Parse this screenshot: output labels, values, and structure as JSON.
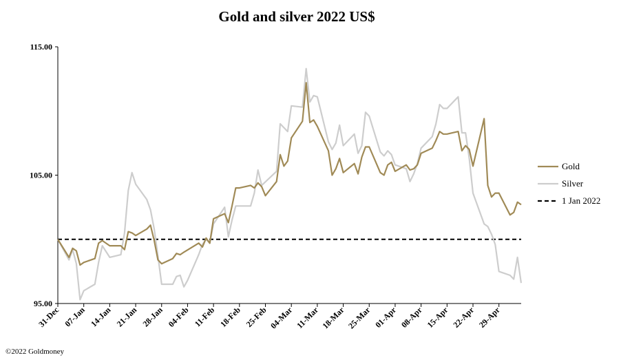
{
  "footer": {
    "copyright": "©2022 Goldmoney"
  },
  "chart_data": {
    "type": "line",
    "title": "Gold and silver 2022  US$",
    "xlabel": "",
    "ylabel": "",
    "ylim": [
      95,
      115
    ],
    "yticks": [
      "95.00",
      "105.00",
      "115.00"
    ],
    "grid": false,
    "legend_position": "right",
    "colors": {
      "gold": "#A08A56",
      "silver": "#CDCDCD",
      "baseline": "#000000"
    },
    "x_tick_labels": [
      "31-Dec",
      "07-Jan",
      "14-Jan",
      "21-Jan",
      "28-Jan",
      "04-Feb",
      "11-Feb",
      "18-Feb",
      "25-Feb",
      "04-Mar",
      "11-Mar",
      "18-Mar",
      "25-Mar",
      "01-Apr",
      "08-Apr",
      "15-Apr",
      "22-Apr",
      "29-Apr"
    ],
    "x_range_days": [
      0,
      125
    ],
    "baseline": {
      "name": "1 Jan 2022",
      "value": 100
    },
    "series": [
      {
        "name": "Gold",
        "points": [
          [
            0,
            100.0
          ],
          [
            3,
            98.6
          ],
          [
            4,
            99.3
          ],
          [
            5,
            99.1
          ],
          [
            6,
            98.0
          ],
          [
            7,
            98.2
          ],
          [
            10,
            98.5
          ],
          [
            11,
            99.7
          ],
          [
            12,
            99.9
          ],
          [
            14,
            99.5
          ],
          [
            17,
            99.5
          ],
          [
            18,
            99.2
          ],
          [
            19,
            100.6
          ],
          [
            20,
            100.5
          ],
          [
            21,
            100.3
          ],
          [
            24,
            100.8
          ],
          [
            25,
            101.1
          ],
          [
            26,
            99.9
          ],
          [
            27,
            98.4
          ],
          [
            28,
            98.1
          ],
          [
            31,
            98.5
          ],
          [
            32,
            98.9
          ],
          [
            33,
            98.8
          ],
          [
            34,
            99.0
          ],
          [
            38,
            99.7
          ],
          [
            39,
            99.4
          ],
          [
            40,
            100.1
          ],
          [
            41,
            99.7
          ],
          [
            42,
            101.6
          ],
          [
            45,
            102.0
          ],
          [
            46,
            101.3
          ],
          [
            47,
            102.6
          ],
          [
            48,
            104.0
          ],
          [
            49,
            104.0
          ],
          [
            52,
            104.2
          ],
          [
            53,
            104.0
          ],
          [
            54,
            104.4
          ],
          [
            55,
            104.1
          ],
          [
            56,
            103.4
          ],
          [
            59,
            104.5
          ],
          [
            60,
            106.6
          ],
          [
            61,
            105.7
          ],
          [
            62,
            106.1
          ],
          [
            63,
            107.9
          ],
          [
            66,
            109.2
          ],
          [
            67,
            112.2
          ],
          [
            68,
            109.1
          ],
          [
            69,
            109.3
          ],
          [
            70,
            108.8
          ],
          [
            73,
            106.9
          ],
          [
            74,
            105.0
          ],
          [
            75,
            105.5
          ],
          [
            76,
            106.3
          ],
          [
            77,
            105.2
          ],
          [
            80,
            105.9
          ],
          [
            81,
            105.1
          ],
          [
            82,
            106.4
          ],
          [
            83,
            107.2
          ],
          [
            84,
            107.2
          ],
          [
            87,
            105.2
          ],
          [
            88,
            105.0
          ],
          [
            89,
            105.8
          ],
          [
            90,
            106.0
          ],
          [
            91,
            105.3
          ],
          [
            94,
            105.8
          ],
          [
            95,
            105.4
          ],
          [
            96,
            105.5
          ],
          [
            97,
            105.8
          ],
          [
            98,
            106.7
          ],
          [
            101,
            107.1
          ],
          [
            102,
            107.7
          ],
          [
            103,
            108.4
          ],
          [
            104,
            108.2
          ],
          [
            105,
            108.2
          ],
          [
            108,
            108.4
          ],
          [
            109,
            106.9
          ],
          [
            110,
            107.3
          ],
          [
            111,
            107.0
          ],
          [
            112,
            105.7
          ],
          [
            115,
            109.4
          ],
          [
            116,
            104.2
          ],
          [
            117,
            103.3
          ],
          [
            118,
            103.6
          ],
          [
            119,
            103.6
          ],
          [
            122,
            101.9
          ],
          [
            123,
            102.1
          ],
          [
            124,
            102.9
          ],
          [
            125,
            102.7
          ]
        ]
      },
      {
        "name": "Silver",
        "points": [
          [
            0,
            100.0
          ],
          [
            3,
            98.4
          ],
          [
            4,
            99.2
          ],
          [
            5,
            98.1
          ],
          [
            6,
            95.3
          ],
          [
            7,
            96.0
          ],
          [
            10,
            96.5
          ],
          [
            11,
            98.2
          ],
          [
            12,
            99.5
          ],
          [
            14,
            98.6
          ],
          [
            17,
            98.8
          ],
          [
            18,
            100.5
          ],
          [
            19,
            103.8
          ],
          [
            20,
            105.2
          ],
          [
            21,
            104.3
          ],
          [
            24,
            103.1
          ],
          [
            25,
            102.3
          ],
          [
            26,
            100.8
          ],
          [
            27,
            98.7
          ],
          [
            28,
            96.5
          ],
          [
            31,
            96.5
          ],
          [
            32,
            97.1
          ],
          [
            33,
            97.2
          ],
          [
            34,
            96.3
          ],
          [
            35,
            96.8
          ],
          [
            38,
            98.8
          ],
          [
            39,
            99.6
          ],
          [
            40,
            100.0
          ],
          [
            41,
            99.7
          ],
          [
            42,
            101.2
          ],
          [
            45,
            102.5
          ],
          [
            46,
            100.2
          ],
          [
            47,
            101.5
          ],
          [
            48,
            102.6
          ],
          [
            49,
            102.6
          ],
          [
            52,
            102.6
          ],
          [
            53,
            103.6
          ],
          [
            54,
            105.4
          ],
          [
            55,
            104.2
          ],
          [
            59,
            105.3
          ],
          [
            60,
            109.0
          ],
          [
            61,
            108.7
          ],
          [
            62,
            108.4
          ],
          [
            63,
            110.4
          ],
          [
            66,
            110.3
          ],
          [
            67,
            113.3
          ],
          [
            68,
            110.7
          ],
          [
            69,
            111.2
          ],
          [
            70,
            111.1
          ],
          [
            73,
            107.6
          ],
          [
            74,
            107.0
          ],
          [
            75,
            107.5
          ],
          [
            76,
            108.9
          ],
          [
            77,
            107.3
          ],
          [
            80,
            108.2
          ],
          [
            81,
            106.7
          ],
          [
            82,
            107.3
          ],
          [
            83,
            109.9
          ],
          [
            84,
            109.6
          ],
          [
            87,
            106.8
          ],
          [
            88,
            106.5
          ],
          [
            89,
            106.9
          ],
          [
            90,
            106.6
          ],
          [
            91,
            105.8
          ],
          [
            94,
            105.5
          ],
          [
            95,
            104.5
          ],
          [
            96,
            105.1
          ],
          [
            97,
            105.9
          ],
          [
            98,
            107.1
          ],
          [
            101,
            108.0
          ],
          [
            102,
            109.0
          ],
          [
            103,
            110.5
          ],
          [
            104,
            110.2
          ],
          [
            105,
            110.2
          ],
          [
            108,
            111.1
          ],
          [
            109,
            108.3
          ],
          [
            110,
            108.3
          ],
          [
            111,
            106.3
          ],
          [
            112,
            103.6
          ],
          [
            115,
            101.2
          ],
          [
            116,
            101.0
          ],
          [
            117,
            100.4
          ],
          [
            118,
            99.6
          ],
          [
            119,
            97.5
          ],
          [
            122,
            97.2
          ],
          [
            123,
            96.9
          ],
          [
            124,
            98.6
          ],
          [
            125,
            96.6
          ]
        ]
      }
    ]
  }
}
